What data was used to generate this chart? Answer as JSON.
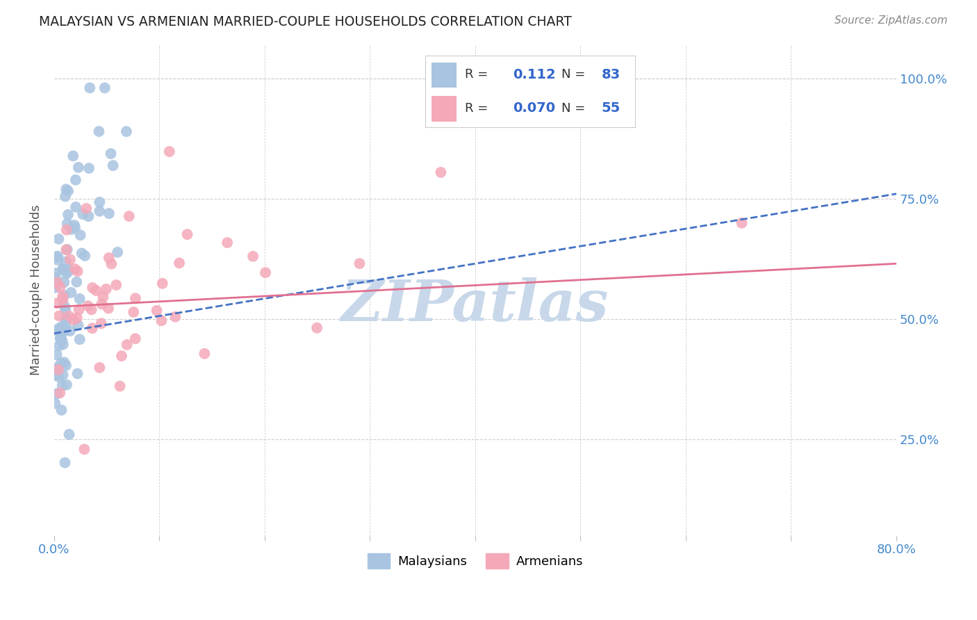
{
  "title": "MALAYSIAN VS ARMENIAN MARRIED-COUPLE HOUSEHOLDS CORRELATION CHART",
  "source": "Source: ZipAtlas.com",
  "ylabel": "Married-couple Households",
  "ytick_labels": [
    "100.0%",
    "75.0%",
    "50.0%",
    "25.0%"
  ],
  "ytick_values": [
    1.0,
    0.75,
    0.5,
    0.25
  ],
  "xlim": [
    0.0,
    0.8
  ],
  "ylim": [
    0.05,
    1.07
  ],
  "legend_R_malaysian": "0.112",
  "legend_N_malaysian": "83",
  "legend_R_armenian": "0.070",
  "legend_N_armenian": "55",
  "malaysian_color": "#a8c4e0",
  "armenian_color": "#f4a8b8",
  "trend_malaysian_color": "#4472c4",
  "trend_armenian_color": "#e07090",
  "background_color": "#ffffff",
  "watermark_text": "ZIPatlas",
  "watermark_color": "#c8d8ea",
  "grid_color": "#d0d0d0",
  "tick_label_color": "#4488cc",
  "title_color": "#222222",
  "source_color": "#888888",
  "ylabel_color": "#555555"
}
